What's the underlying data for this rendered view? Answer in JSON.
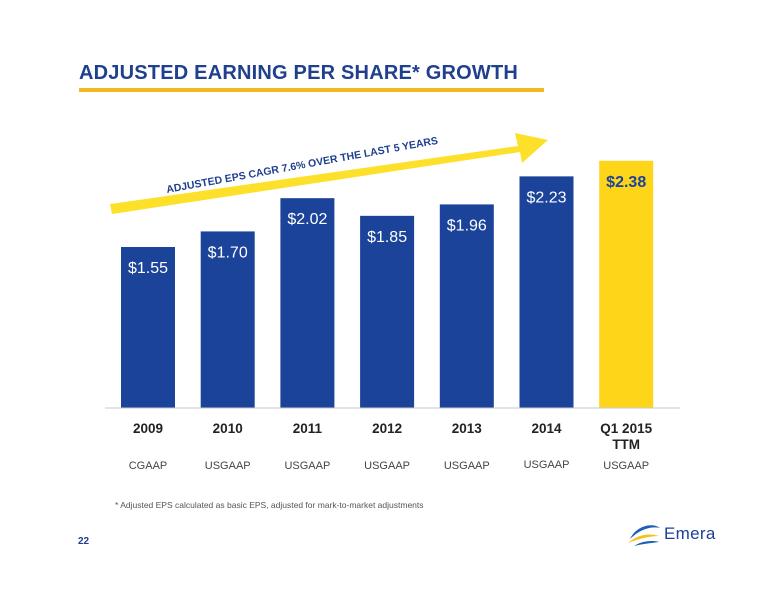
{
  "slide": {
    "title": "ADJUSTED EARNING PER SHARE* GROWTH",
    "footnote": "* Adjusted EPS calculated as basic EPS, adjusted for mark-to-market adjustments",
    "page_number": "22",
    "logo_text": "Emera",
    "cagr_label": "ADJUSTED EPS CAGR  7.6% OVER THE LAST 5 YEARS"
  },
  "colors": {
    "bar_primary": "#1a4399",
    "bar_highlight": "#ffd51a",
    "arrow": "#fde02a",
    "accent_rule": "#f2b722"
  },
  "chart_data": {
    "type": "bar",
    "categories": [
      "2009",
      "2010",
      "2011",
      "2012",
      "2013",
      "2014",
      "Q1 2015\nTTM"
    ],
    "values": [
      1.55,
      1.7,
      2.02,
      1.85,
      1.96,
      2.23,
      2.38
    ],
    "data_labels": [
      "$1.55",
      "$1.70",
      "$2.02",
      "$1.85",
      "$1.96",
      "$2.23",
      "$2.38"
    ],
    "sublabels": [
      "CGAAP",
      "USGAAP",
      "USGAAP",
      "USGAAP",
      "USGAAP",
      "USGAAP",
      "USGAAP"
    ],
    "highlight_index": 6,
    "title": "",
    "xlabel": "",
    "ylabel": "",
    "grid": false
  }
}
